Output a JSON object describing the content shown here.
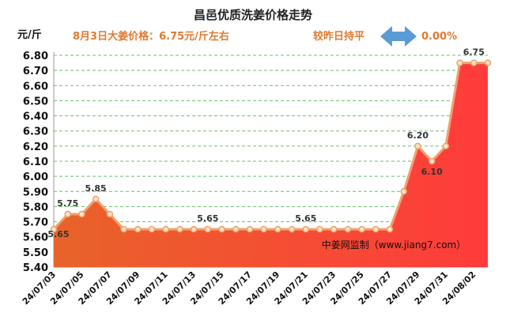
{
  "chart_data": {
    "type": "area",
    "title": "昌邑优质洗姜价格走势",
    "unit_label": "元/斤",
    "headline": "8月3日大姜价格：6.75元/斤左右",
    "change_text": "较昨日持平",
    "change_value": "0.00%",
    "source": "中姜网监制（www.jiang7.com）",
    "ylim": [
      5.4,
      6.8
    ],
    "yticks": [
      "5.40",
      "5.50",
      "5.60",
      "5.70",
      "5.80",
      "5.90",
      "6.00",
      "6.10",
      "6.20",
      "6.30",
      "6.40",
      "6.50",
      "6.60",
      "6.70",
      "6.80"
    ],
    "x": [
      "24/07/03",
      "24/07/04",
      "24/07/05",
      "24/07/06",
      "24/07/07",
      "24/07/08",
      "24/07/09",
      "24/07/10",
      "24/07/11",
      "24/07/12",
      "24/07/13",
      "24/07/14",
      "24/07/15",
      "24/07/16",
      "24/07/17",
      "24/07/18",
      "24/07/19",
      "24/07/20",
      "24/07/21",
      "24/07/22",
      "24/07/23",
      "24/07/24",
      "24/07/25",
      "24/07/26",
      "24/07/27",
      "24/07/28",
      "24/07/29",
      "24/07/30",
      "24/07/31",
      "24/08/01",
      "24/08/02",
      "24/08/03"
    ],
    "xtick_labels": [
      "24/07/03",
      "24/07/05",
      "24/07/07",
      "24/07/09",
      "24/07/11",
      "24/07/13",
      "24/07/15",
      "24/07/17",
      "24/07/19",
      "24/07/21",
      "24/07/23",
      "24/07/25",
      "24/07/27",
      "24/07/29",
      "24/07/31",
      "24/08/02"
    ],
    "values": [
      5.65,
      5.75,
      5.75,
      5.85,
      5.75,
      5.65,
      5.65,
      5.65,
      5.65,
      5.65,
      5.65,
      5.65,
      5.65,
      5.65,
      5.65,
      5.65,
      5.65,
      5.65,
      5.65,
      5.65,
      5.65,
      5.65,
      5.65,
      5.65,
      5.65,
      5.9,
      6.2,
      6.1,
      6.2,
      6.75,
      6.75,
      6.75
    ],
    "data_labels": [
      {
        "index": 0,
        "text": "5.65"
      },
      {
        "index": 1,
        "text": "5.75"
      },
      {
        "index": 3,
        "text": "5.85"
      },
      {
        "index": 11,
        "text": "5.65"
      },
      {
        "index": 18,
        "text": "5.65"
      },
      {
        "index": 26,
        "text": "6.20"
      },
      {
        "index": 27,
        "text": "6.10"
      },
      {
        "index": 30,
        "text": "6.75"
      }
    ],
    "colors": {
      "fill_left": "#e8632a",
      "fill_right": "#ff3b3b",
      "line": "#f0a070",
      "marker_fill": "#fde3c8",
      "marker_stroke": "#e9a36a",
      "grid": "#6abf6a",
      "arrow": "#5b9bd5"
    },
    "grid": true,
    "legend": "none"
  }
}
